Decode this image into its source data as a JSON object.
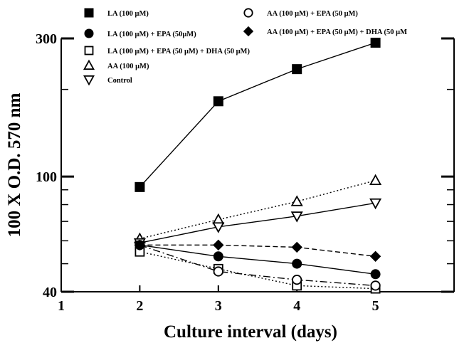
{
  "chart_data": {
    "type": "line",
    "title": "",
    "xlabel": "Culture interval (days)",
    "ylabel": "100 X O.D. 570 nm",
    "xlim": [
      1,
      6
    ],
    "ylim": [
      40,
      300
    ],
    "y_scale": "log",
    "x_ticks": [
      1,
      2,
      3,
      4,
      5
    ],
    "y_ticks": [
      40,
      100,
      300
    ],
    "y_minor_ticks": [
      50,
      60,
      70,
      80,
      90,
      200
    ],
    "grid": false,
    "legend_position": "top",
    "x": [
      2,
      3,
      4,
      5
    ],
    "series": [
      {
        "name": "LA (100 μM)",
        "marker": "square-filled",
        "line": "solid",
        "values": [
          92,
          182,
          235,
          290
        ]
      },
      {
        "name": "LA (100 μM) + EPA (50μM)",
        "marker": "circle-filled",
        "line": "solid",
        "values": [
          58,
          53,
          50,
          46
        ]
      },
      {
        "name": "LA (100 μM) + EPA (50 μM) + DHA (50 μM)",
        "marker": "square-open",
        "line": "dotted",
        "values": [
          55,
          48,
          42,
          41
        ]
      },
      {
        "name": "AA (100 μM)",
        "marker": "triangle-up-open",
        "line": "dotted",
        "values": [
          61,
          71,
          82,
          97
        ]
      },
      {
        "name": "Control",
        "marker": "triangle-down-open",
        "line": "solid",
        "values": [
          59,
          67,
          73,
          81
        ]
      },
      {
        "name": "AA (100 μM) + EPA (50 μM)",
        "marker": "circle-open",
        "line": "dashdot",
        "values": [
          58,
          47,
          44,
          42
        ]
      },
      {
        "name": "AA (100 μM) + EPA (50 μM) + DHA (50 μM)",
        "marker": "diamond-filled",
        "line": "dashed",
        "values": [
          58,
          58,
          57,
          53
        ]
      }
    ],
    "legend": [
      {
        "label": "LA (100 μM)",
        "marker": "square-filled"
      },
      {
        "label": "LA (100 μM) + EPA (50μM)",
        "marker": "circle-filled"
      },
      {
        "label": "LA (100 μM) + EPA (50 μM) + DHA (50 μM)",
        "marker": "square-open"
      },
      {
        "label": "AA (100 μM)",
        "marker": "triangle-up-open"
      },
      {
        "label": "Control",
        "marker": "triangle-down-open"
      },
      {
        "label": "AA (100 μM) + EPA (50 μM)",
        "marker": "circle-open"
      },
      {
        "label": "AA (100 μM) + EPA (50 μM) + DHA (50 μM",
        "marker": "diamond-filled"
      }
    ]
  }
}
